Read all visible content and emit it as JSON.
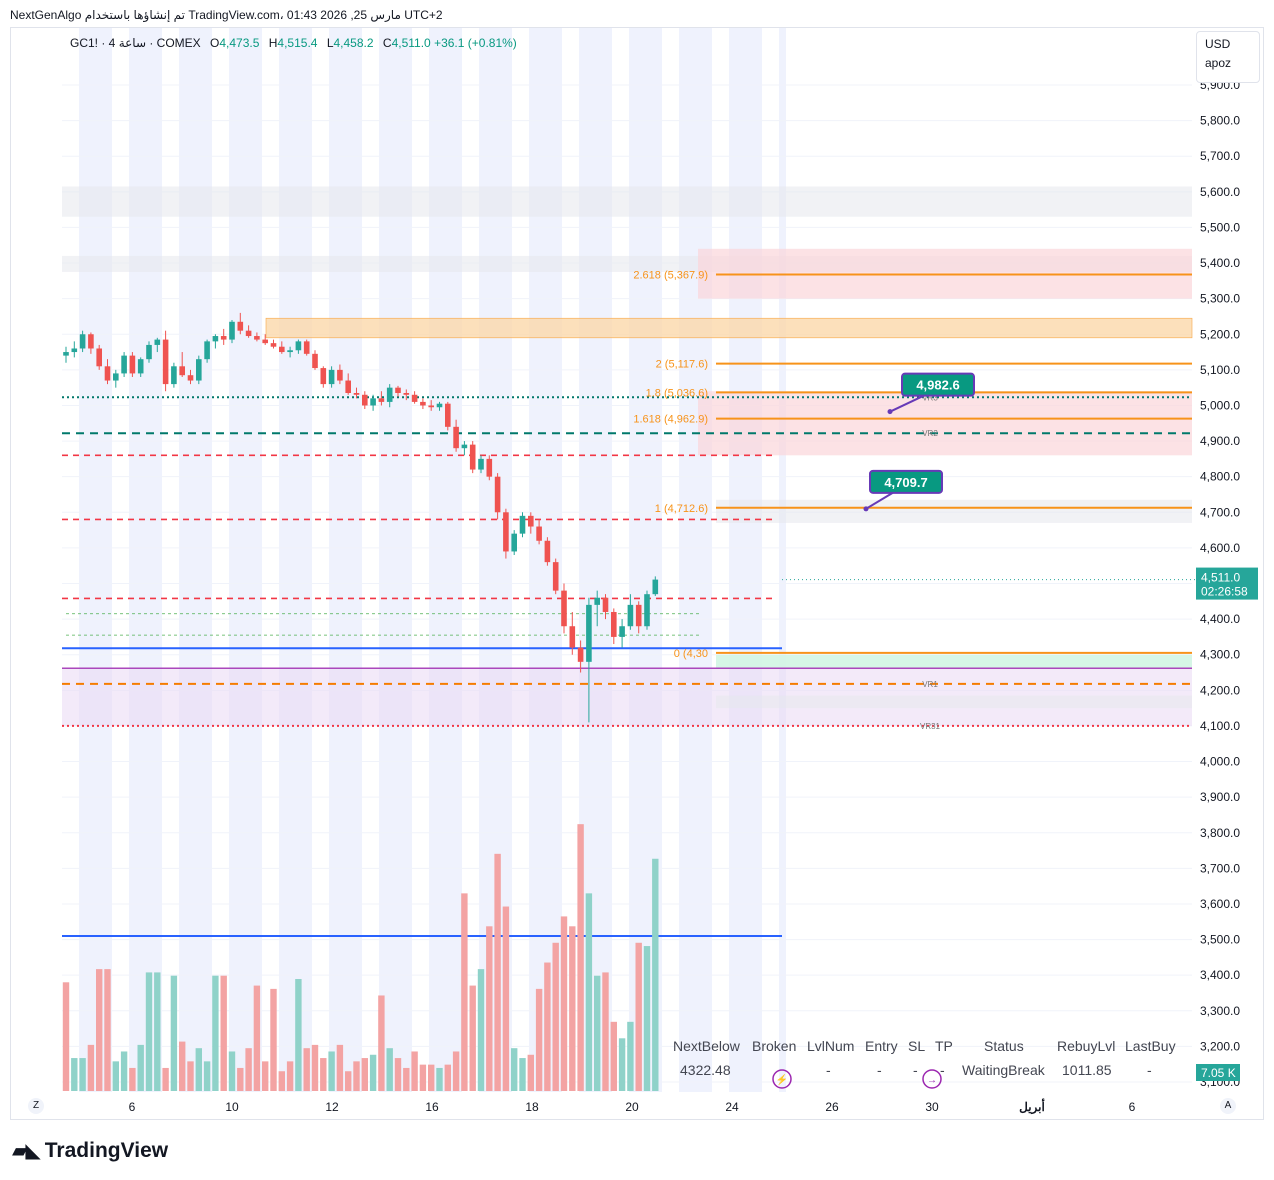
{
  "header": {
    "text": "NextGenAlgo تم إنشاؤها باستخدام TradingView.com، 01:43 2026 ,25 مارس UTC+2"
  },
  "legend": {
    "symbol": "GC1! · 4 ساعة · COMEX",
    "open_label": "O",
    "open": "4,473.5",
    "high_label": "H",
    "high": "4,515.4",
    "low_label": "L",
    "low": "4,458.2",
    "close_label": "C",
    "close": "4,511.0",
    "change": "+36.1 (+0.81%)"
  },
  "currency_box": {
    "currency": "USD",
    "unit": "apoz"
  },
  "colors": {
    "up": "#26a69a",
    "down": "#ef5350",
    "orange": "#f7931a",
    "blue": "#2962ff",
    "teal_badge": "#089981",
    "purple": "#673ab7"
  },
  "chart_data": {
    "type": "candlestick",
    "symbol": "GC1!",
    "timeframe": "4h",
    "ylim": [
      3100,
      5950
    ],
    "y_ticks": [
      "3,100.0",
      "3,200.0",
      "3,300.0",
      "3,400.0",
      "3,500.0",
      "3,600.0",
      "3,700.0",
      "3,800.0",
      "3,900.0",
      "4,000.0",
      "4,100.0",
      "4,200.0",
      "4,300.0",
      "4,400.0",
      "4,500.0",
      "4,600.0",
      "4,700.0",
      "4,800.0",
      "4,900.0",
      "5,000.0",
      "5,100.0",
      "5,200.0",
      "5,300.0",
      "5,400.0",
      "5,500.0",
      "5,600.0",
      "5,700.0",
      "5,800.0",
      "5,900.0"
    ],
    "x_ticks": [
      "6",
      "10",
      "12",
      "16",
      "18",
      "20",
      "24",
      "26",
      "30",
      "أبريل",
      "6"
    ],
    "current_price": "4,511.0",
    "countdown": "02:26:58",
    "volume_label": "7.05 K",
    "candles": [
      [
        5140,
        5165,
        5120,
        5150
      ],
      [
        5150,
        5180,
        5135,
        5160
      ],
      [
        5160,
        5210,
        5150,
        5200
      ],
      [
        5200,
        5205,
        5145,
        5160
      ],
      [
        5160,
        5170,
        5100,
        5110
      ],
      [
        5110,
        5130,
        5060,
        5070
      ],
      [
        5070,
        5100,
        5050,
        5090
      ],
      [
        5090,
        5150,
        5080,
        5140
      ],
      [
        5140,
        5150,
        5080,
        5090
      ],
      [
        5090,
        5135,
        5080,
        5130
      ],
      [
        5130,
        5180,
        5120,
        5170
      ],
      [
        5170,
        5190,
        5150,
        5185
      ],
      [
        5185,
        5210,
        5040,
        5060
      ],
      [
        5060,
        5120,
        5050,
        5110
      ],
      [
        5110,
        5150,
        5080,
        5085
      ],
      [
        5085,
        5100,
        5060,
        5070
      ],
      [
        5070,
        5140,
        5060,
        5130
      ],
      [
        5130,
        5185,
        5120,
        5180
      ],
      [
        5180,
        5200,
        5160,
        5195
      ],
      [
        5195,
        5215,
        5170,
        5185
      ],
      [
        5185,
        5240,
        5175,
        5235
      ],
      [
        5235,
        5260,
        5200,
        5210
      ],
      [
        5210,
        5225,
        5190,
        5195
      ],
      [
        5195,
        5205,
        5180,
        5185
      ],
      [
        5185,
        5200,
        5170,
        5175
      ],
      [
        5175,
        5185,
        5160,
        5165
      ],
      [
        5165,
        5180,
        5145,
        5150
      ],
      [
        5150,
        5165,
        5135,
        5155
      ],
      [
        5155,
        5185,
        5145,
        5180
      ],
      [
        5180,
        5185,
        5140,
        5145
      ],
      [
        5145,
        5155,
        5100,
        5105
      ],
      [
        5105,
        5110,
        5050,
        5060
      ],
      [
        5060,
        5110,
        5050,
        5100
      ],
      [
        5100,
        5115,
        5060,
        5070
      ],
      [
        5070,
        5090,
        5030,
        5035
      ],
      [
        5035,
        5050,
        5020,
        5030
      ],
      [
        5030,
        5040,
        4990,
        5000
      ],
      [
        5000,
        5030,
        4985,
        5020
      ],
      [
        5020,
        5040,
        5000,
        5010
      ],
      [
        5010,
        5060,
        4995,
        5050
      ],
      [
        5050,
        5055,
        5025,
        5035
      ],
      [
        5035,
        5045,
        5015,
        5030
      ],
      [
        5030,
        5040,
        5005,
        5010
      ],
      [
        5010,
        5020,
        4990,
        5000
      ],
      [
        5000,
        5015,
        4985,
        4995
      ],
      [
        4995,
        5010,
        4985,
        5005
      ],
      [
        5005,
        5010,
        4930,
        4940
      ],
      [
        4940,
        4960,
        4870,
        4880
      ],
      [
        4880,
        4900,
        4860,
        4890
      ],
      [
        4890,
        4900,
        4810,
        4820
      ],
      [
        4820,
        4860,
        4810,
        4850
      ],
      [
        4850,
        4860,
        4790,
        4800
      ],
      [
        4800,
        4810,
        4680,
        4700
      ],
      [
        4700,
        4710,
        4570,
        4590
      ],
      [
        4590,
        4650,
        4580,
        4640
      ],
      [
        4640,
        4700,
        4630,
        4690
      ],
      [
        4690,
        4700,
        4640,
        4660
      ],
      [
        4660,
        4680,
        4610,
        4620
      ],
      [
        4620,
        4630,
        4550,
        4560
      ],
      [
        4560,
        4570,
        4470,
        4480
      ],
      [
        4480,
        4500,
        4360,
        4380
      ],
      [
        4380,
        4420,
        4300,
        4320
      ],
      [
        4320,
        4340,
        4250,
        4280
      ],
      [
        4280,
        4460,
        4110,
        4440
      ],
      [
        4440,
        4480,
        4380,
        4460
      ],
      [
        4460,
        4470,
        4400,
        4420
      ],
      [
        4420,
        4430,
        4330,
        4350
      ],
      [
        4350,
        4400,
        4320,
        4380
      ],
      [
        4380,
        4470,
        4370,
        4440
      ],
      [
        4440,
        4450,
        4360,
        4380
      ],
      [
        4380,
        4480,
        4370,
        4470
      ],
      [
        4470,
        4520,
        4465,
        4511
      ]
    ],
    "volumes": [
      3.3,
      1.0,
      1.0,
      1.4,
      3.7,
      3.7,
      0.9,
      1.2,
      0.7,
      1.4,
      3.6,
      3.6,
      0.7,
      3.5,
      1.5,
      0.9,
      1.3,
      0.9,
      3.5,
      3.5,
      1.2,
      0.7,
      1.3,
      3.2,
      0.9,
      3.1,
      0.6,
      0.9,
      3.4,
      1.3,
      1.4,
      1.0,
      1.2,
      1.4,
      0.6,
      0.9,
      1.0,
      1.1,
      2.9,
      1.3,
      1.0,
      0.7,
      1.2,
      0.8,
      0.8,
      0.7,
      0.8,
      1.2,
      6.0,
      3.2,
      3.7,
      5.0,
      7.2,
      5.6,
      1.3,
      1.0,
      1.1,
      3.1,
      3.9,
      4.5,
      5.3,
      5.0,
      8.1,
      6.0,
      3.5,
      3.6,
      2.1,
      1.6,
      2.1,
      4.5,
      4.4,
      7.05
    ],
    "volume_colors": [
      "down",
      "up",
      "up",
      "down",
      "down",
      "down",
      "up",
      "up",
      "down",
      "up",
      "up",
      "up",
      "down",
      "up",
      "down",
      "down",
      "up",
      "up",
      "up",
      "down",
      "up",
      "down",
      "down",
      "down",
      "down",
      "down",
      "down",
      "down",
      "up",
      "down",
      "down",
      "down",
      "up",
      "down",
      "down",
      "down",
      "down",
      "up",
      "down",
      "up",
      "down",
      "down",
      "down",
      "down",
      "down",
      "up",
      "down",
      "down",
      "down",
      "down",
      "up",
      "down",
      "down",
      "down",
      "up",
      "up",
      "down",
      "down",
      "down",
      "down",
      "down",
      "down",
      "down",
      "up",
      "up",
      "down",
      "down",
      "up",
      "up",
      "down",
      "up",
      "up"
    ],
    "fib_levels": [
      {
        "label": "2.618 (5,367.9)",
        "value": 5367.9
      },
      {
        "label": "2 (5,117.6)",
        "value": 5117.6
      },
      {
        "label": "1.8 (5,036.6)",
        "value": 5036.6
      },
      {
        "label": "1.618 (4,962.9)",
        "value": 4962.9
      },
      {
        "label": "1 (4,712.6)",
        "value": 4712.6
      },
      {
        "label": "0 (4,30",
        "value": 4305
      }
    ],
    "callouts": [
      {
        "label": "4,982.6",
        "value": 4982.6
      },
      {
        "label": "4,709.7",
        "value": 4709.7
      }
    ],
    "line_tags": [
      {
        "label": "VR3",
        "value": 5022
      },
      {
        "label": "VR2",
        "value": 4922
      },
      {
        "label": "VR1",
        "value": 4218
      },
      {
        "label": "VR31",
        "value": 4100
      }
    ],
    "zones": [
      {
        "kind": "gray",
        "from": 5530,
        "to": 5615
      },
      {
        "kind": "gray",
        "from": 5375,
        "to": 5420
      },
      {
        "kind": "pink",
        "from": 5300,
        "to": 5440
      },
      {
        "kind": "orange",
        "from": 5190,
        "to": 5245
      },
      {
        "kind": "pink",
        "from": 4860,
        "to": 5040
      },
      {
        "kind": "gray",
        "from": 4670,
        "to": 4735
      },
      {
        "kind": "green",
        "from": 4260,
        "to": 4300
      },
      {
        "kind": "purple",
        "from": 4100,
        "to": 4262
      },
      {
        "kind": "gray",
        "from": 4150,
        "to": 4185
      }
    ],
    "horizontal_lines": [
      {
        "style": "dotted-teal",
        "value": 5023
      },
      {
        "style": "dashed-teal",
        "value": 4922
      },
      {
        "style": "dashed-red",
        "value": 4860
      },
      {
        "style": "dashed-red",
        "value": 4680
      },
      {
        "style": "dashed-red",
        "value": 4458
      },
      {
        "style": "dashed-green-thin",
        "value": 4415
      },
      {
        "style": "dashed-green-thin",
        "value": 4355
      },
      {
        "style": "solid-blue",
        "value": 4318
      },
      {
        "style": "solid-purple",
        "value": 4262
      },
      {
        "style": "dashed-orange",
        "value": 4218
      },
      {
        "style": "dotted-red",
        "value": 4100
      },
      {
        "style": "solid-blue",
        "value": 3510
      }
    ]
  },
  "info_table": {
    "headers": [
      "NextBelow",
      "Broken",
      "LvlNum",
      "Entry",
      "SL",
      "TP",
      "Status",
      "RebuyLvl",
      "LastBuy"
    ],
    "values": [
      "4322.48",
      "",
      "-",
      "-",
      "-",
      "-",
      "WaitingBreak",
      "1011.85",
      "-"
    ]
  },
  "corners": {
    "left": "Z",
    "right": "A"
  },
  "brand": {
    "name": "TradingView"
  }
}
